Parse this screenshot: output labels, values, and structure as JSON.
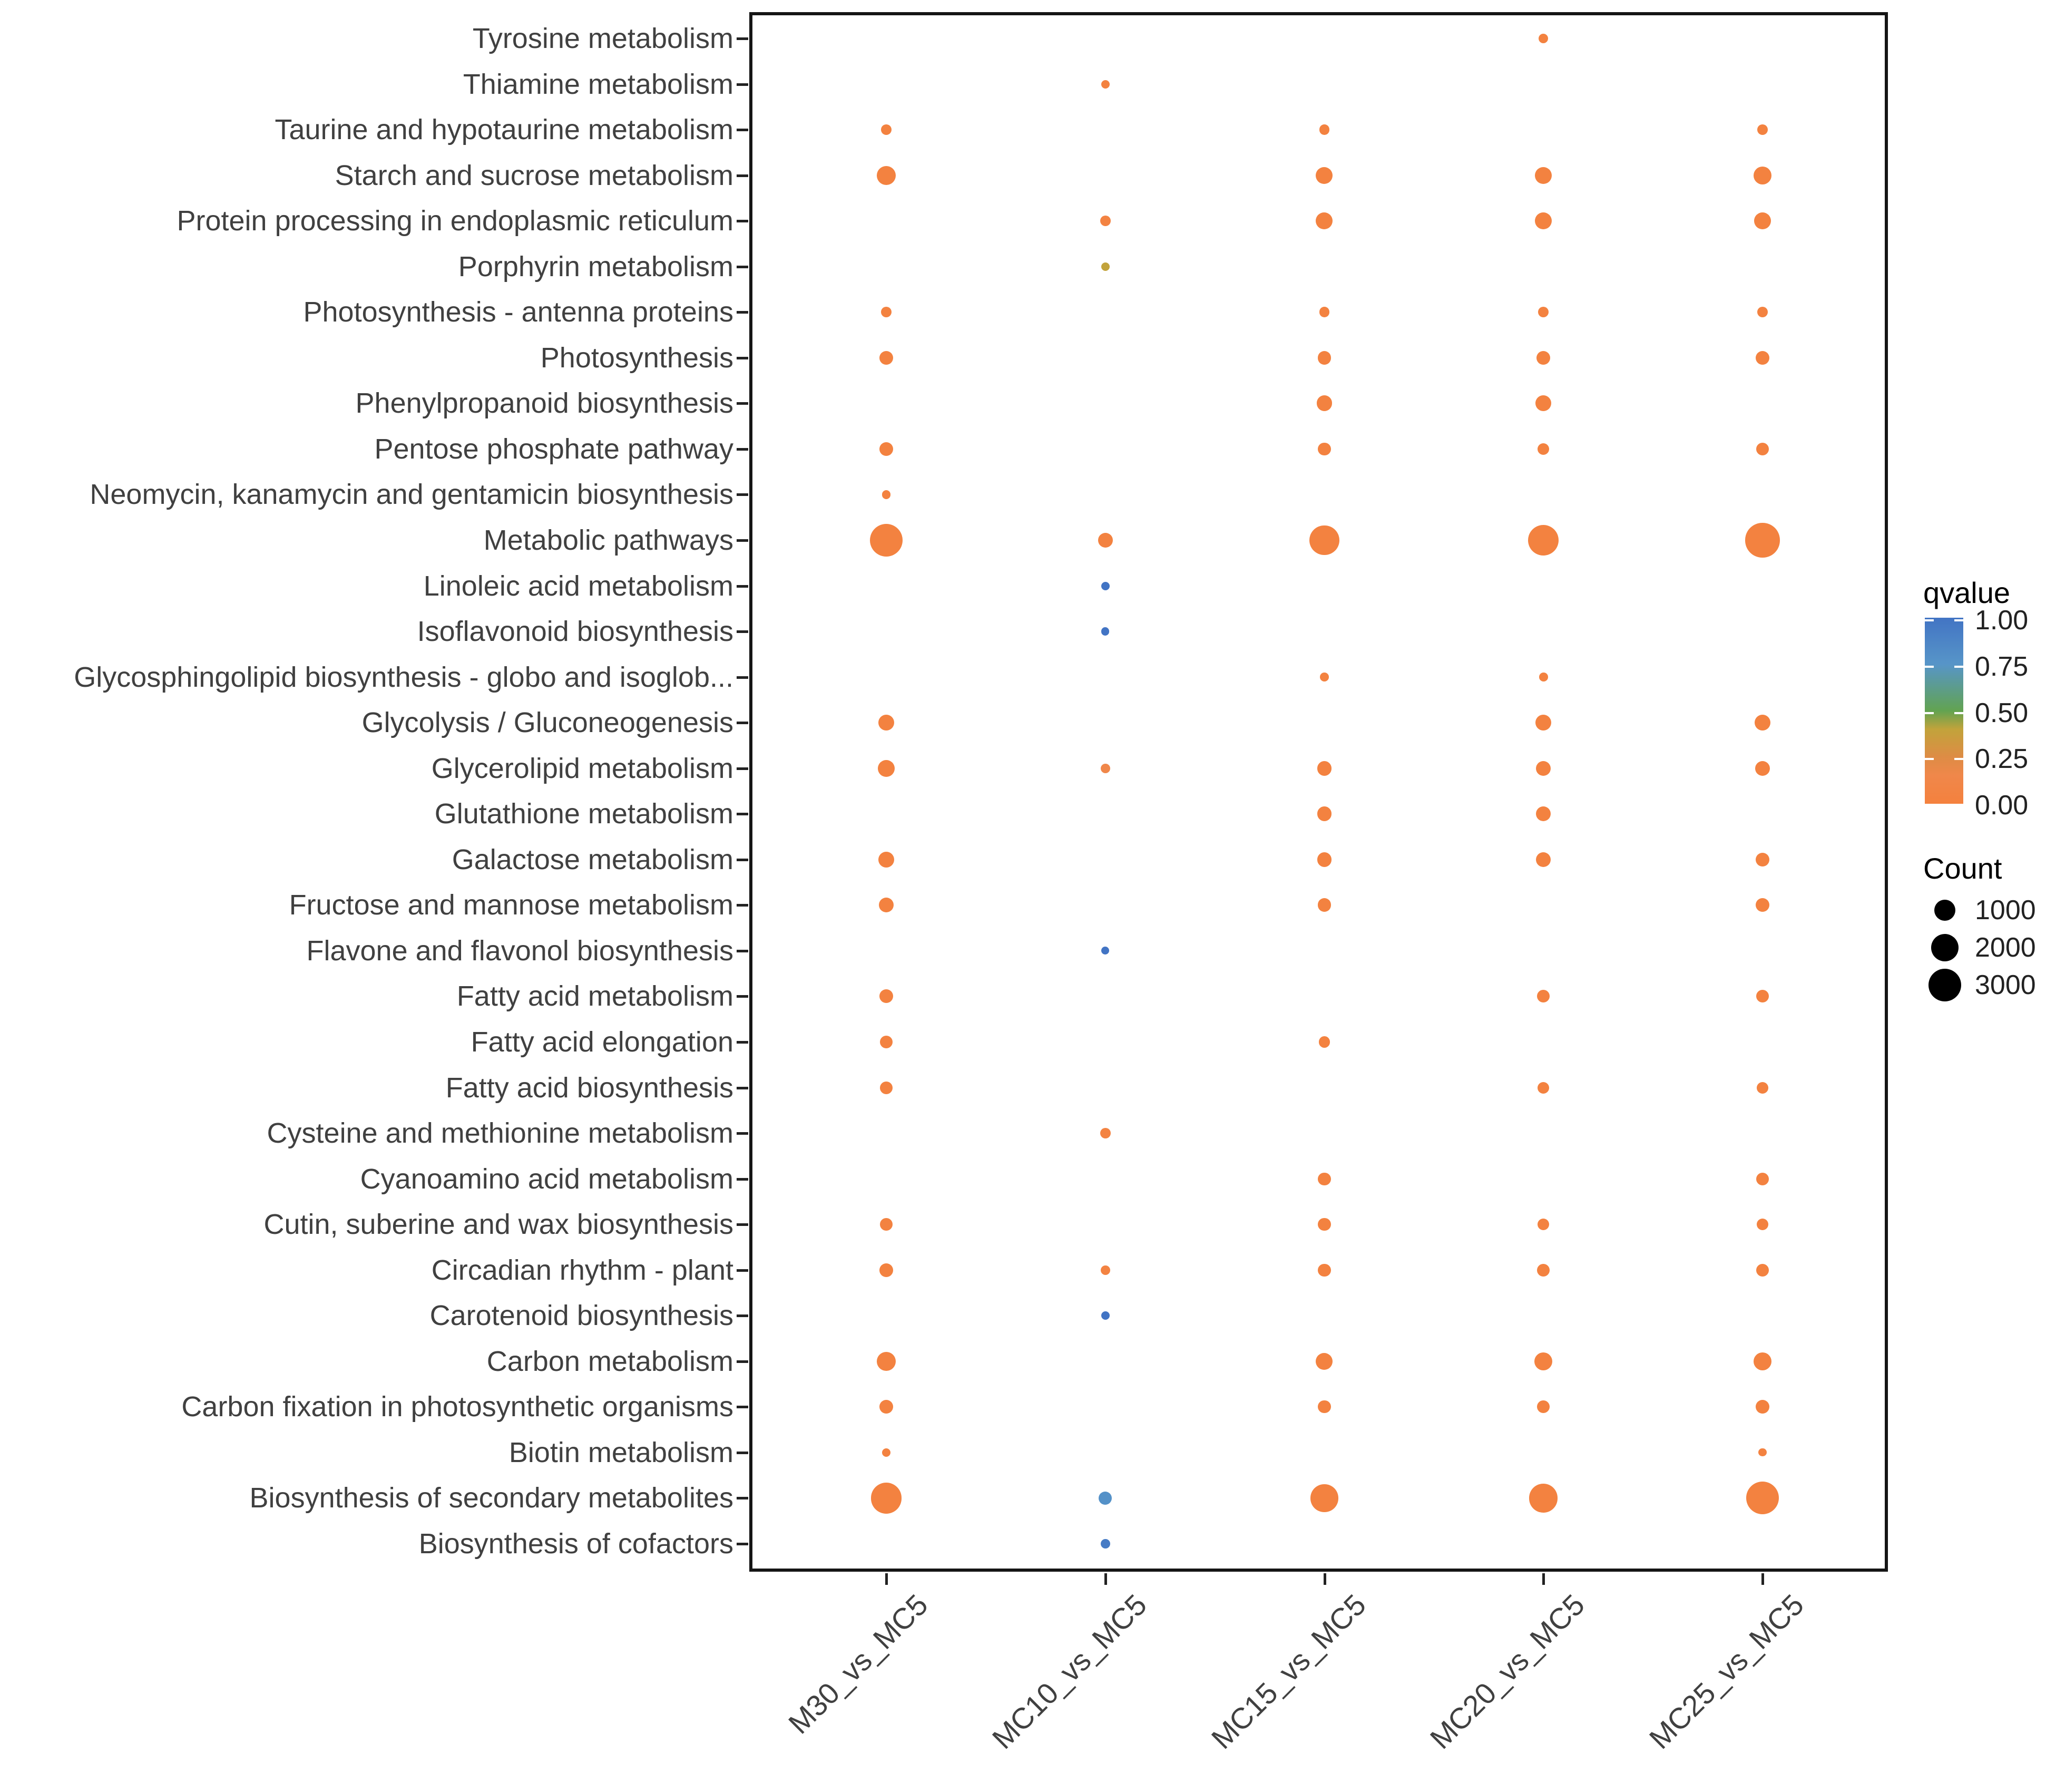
{
  "chart_data": {
    "type": "bubble",
    "title": "",
    "xlabel": "",
    "ylabel": "",
    "x_categories": [
      "M30_vs_MC5",
      "MC10_vs_MC5",
      "MC15_vs_MC5",
      "MC20_vs_MC5",
      "MC25_vs_MC5"
    ],
    "y_categories": [
      "Tyrosine metabolism",
      "Thiamine metabolism",
      "Taurine and hypotaurine metabolism",
      "Starch and sucrose metabolism",
      "Protein processing in endoplasmic reticulum",
      "Porphyrin metabolism",
      "Photosynthesis - antenna proteins",
      "Photosynthesis",
      "Phenylpropanoid biosynthesis",
      "Pentose phosphate pathway",
      "Neomycin, kanamycin and gentamicin biosynthesis",
      "Metabolic pathways",
      "Linoleic acid metabolism",
      "Isoflavonoid biosynthesis",
      "Glycosphingolipid biosynthesis - globo and isoglob...",
      "Glycolysis / Gluconeogenesis",
      "Glycerolipid metabolism",
      "Glutathione metabolism",
      "Galactose metabolism",
      "Fructose and mannose metabolism",
      "Flavone and flavonol biosynthesis",
      "Fatty acid metabolism",
      "Fatty acid elongation",
      "Fatty acid biosynthesis",
      "Cysteine and methionine metabolism",
      "Cyanoamino acid metabolism",
      "Cutin, suberine and wax biosynthesis",
      "Circadian rhythm - plant",
      "Carotenoid biosynthesis",
      "Carbon metabolism",
      "Carbon fixation in photosynthetic organisms",
      "Biotin metabolism",
      "Biosynthesis of secondary metabolites",
      "Biosynthesis of cofactors"
    ],
    "rows": [
      {
        "pathway": "Tyrosine metabolism",
        "dots": [
          {
            "comparison": "MC20_vs_MC5",
            "count": 70,
            "qvalue": 0.02
          }
        ]
      },
      {
        "pathway": "Thiamine metabolism",
        "dots": [
          {
            "comparison": "MC10_vs_MC5",
            "count": 40,
            "qvalue": 0.03
          }
        ]
      },
      {
        "pathway": "Taurine and hypotaurine metabolism",
        "dots": [
          {
            "comparison": "M30_vs_MC5",
            "count": 130,
            "qvalue": 0.02
          },
          {
            "comparison": "MC15_vs_MC5",
            "count": 110,
            "qvalue": 0.02
          },
          {
            "comparison": "MC25_vs_MC5",
            "count": 110,
            "qvalue": 0.02
          }
        ]
      },
      {
        "pathway": "Starch and sucrose metabolism",
        "dots": [
          {
            "comparison": "M30_vs_MC5",
            "count": 750,
            "qvalue": 0.02
          },
          {
            "comparison": "MC15_vs_MC5",
            "count": 540,
            "qvalue": 0.02
          },
          {
            "comparison": "MC20_vs_MC5",
            "count": 540,
            "qvalue": 0.02
          },
          {
            "comparison": "MC25_vs_MC5",
            "count": 640,
            "qvalue": 0.02
          }
        ]
      },
      {
        "pathway": "Protein processing in endoplasmic reticulum",
        "dots": [
          {
            "comparison": "MC10_vs_MC5",
            "count": 110,
            "qvalue": 0.05
          },
          {
            "comparison": "MC15_vs_MC5",
            "count": 540,
            "qvalue": 0.02
          },
          {
            "comparison": "MC20_vs_MC5",
            "count": 540,
            "qvalue": 0.02
          },
          {
            "comparison": "MC25_vs_MC5",
            "count": 540,
            "qvalue": 0.02
          }
        ]
      },
      {
        "pathway": "Porphyrin metabolism",
        "dots": [
          {
            "comparison": "MC10_vs_MC5",
            "count": 40,
            "qvalue": 0.4
          }
        ]
      },
      {
        "pathway": "Photosynthesis - antenna proteins",
        "dots": [
          {
            "comparison": "M30_vs_MC5",
            "count": 110,
            "qvalue": 0.02
          },
          {
            "comparison": "MC15_vs_MC5",
            "count": 110,
            "qvalue": 0.02
          },
          {
            "comparison": "MC20_vs_MC5",
            "count": 110,
            "qvalue": 0.02
          },
          {
            "comparison": "MC25_vs_MC5",
            "count": 110,
            "qvalue": 0.02
          }
        ]
      },
      {
        "pathway": "Photosynthesis",
        "dots": [
          {
            "comparison": "M30_vs_MC5",
            "count": 285,
            "qvalue": 0.02
          },
          {
            "comparison": "MC15_vs_MC5",
            "count": 285,
            "qvalue": 0.02
          },
          {
            "comparison": "MC20_vs_MC5",
            "count": 285,
            "qvalue": 0.02
          },
          {
            "comparison": "MC25_vs_MC5",
            "count": 285,
            "qvalue": 0.02
          }
        ]
      },
      {
        "pathway": "Phenylpropanoid biosynthesis",
        "dots": [
          {
            "comparison": "MC15_vs_MC5",
            "count": 445,
            "qvalue": 0.02
          },
          {
            "comparison": "MC20_vs_MC5",
            "count": 445,
            "qvalue": 0.02
          }
        ]
      },
      {
        "pathway": "Pentose phosphate pathway",
        "dots": [
          {
            "comparison": "M30_vs_MC5",
            "count": 285,
            "qvalue": 0.02
          },
          {
            "comparison": "MC15_vs_MC5",
            "count": 220,
            "qvalue": 0.02
          },
          {
            "comparison": "MC20_vs_MC5",
            "count": 160,
            "qvalue": 0.02
          },
          {
            "comparison": "MC25_vs_MC5",
            "count": 220,
            "qvalue": 0.02
          }
        ]
      },
      {
        "pathway": "Neomycin, kanamycin and gentamicin biosynthesis",
        "dots": [
          {
            "comparison": "M30_vs_MC5",
            "count": 50,
            "qvalue": 0.02
          }
        ]
      },
      {
        "pathway": "Metabolic pathways",
        "dots": [
          {
            "comparison": "M30_vs_MC5",
            "count": 3000,
            "qvalue": 0.02
          },
          {
            "comparison": "MC10_vs_MC5",
            "count": 360,
            "qvalue": 0.02
          },
          {
            "comparison": "MC15_vs_MC5",
            "count": 2400,
            "qvalue": 0.02
          },
          {
            "comparison": "MC20_vs_MC5",
            "count": 2600,
            "qvalue": 0.02
          },
          {
            "comparison": "MC25_vs_MC5",
            "count": 3400,
            "qvalue": 0.02
          }
        ]
      },
      {
        "pathway": "Linoleic acid metabolism",
        "dots": [
          {
            "comparison": "MC10_vs_MC5",
            "count": 40,
            "qvalue": 1.0
          }
        ]
      },
      {
        "pathway": "Isoflavonoid biosynthesis",
        "dots": [
          {
            "comparison": "MC10_vs_MC5",
            "count": 30,
            "qvalue": 1.0
          }
        ]
      },
      {
        "pathway": "Glycosphingolipid biosynthesis - globo and isoglob...",
        "dots": [
          {
            "comparison": "MC15_vs_MC5",
            "count": 50,
            "qvalue": 0.02
          },
          {
            "comparison": "MC20_vs_MC5",
            "count": 50,
            "qvalue": 0.02
          }
        ]
      },
      {
        "pathway": "Glycolysis / Gluconeogenesis",
        "dots": [
          {
            "comparison": "M30_vs_MC5",
            "count": 445,
            "qvalue": 0.02
          },
          {
            "comparison": "MC20_vs_MC5",
            "count": 445,
            "qvalue": 0.02
          },
          {
            "comparison": "MC25_vs_MC5",
            "count": 445,
            "qvalue": 0.02
          }
        ]
      },
      {
        "pathway": "Glycerolipid metabolism",
        "dots": [
          {
            "comparison": "M30_vs_MC5",
            "count": 540,
            "qvalue": 0.02
          },
          {
            "comparison": "MC10_vs_MC5",
            "count": 70,
            "qvalue": 0.15
          },
          {
            "comparison": "MC15_vs_MC5",
            "count": 360,
            "qvalue": 0.02
          },
          {
            "comparison": "MC20_vs_MC5",
            "count": 360,
            "qvalue": 0.02
          },
          {
            "comparison": "MC25_vs_MC5",
            "count": 360,
            "qvalue": 0.02
          }
        ]
      },
      {
        "pathway": "Glutathione metabolism",
        "dots": [
          {
            "comparison": "MC15_vs_MC5",
            "count": 360,
            "qvalue": 0.02
          },
          {
            "comparison": "MC20_vs_MC5",
            "count": 360,
            "qvalue": 0.02
          }
        ]
      },
      {
        "pathway": "Galactose metabolism",
        "dots": [
          {
            "comparison": "M30_vs_MC5",
            "count": 445,
            "qvalue": 0.02
          },
          {
            "comparison": "MC15_vs_MC5",
            "count": 360,
            "qvalue": 0.02
          },
          {
            "comparison": "MC20_vs_MC5",
            "count": 360,
            "qvalue": 0.02
          },
          {
            "comparison": "MC25_vs_MC5",
            "count": 285,
            "qvalue": 0.02
          }
        ]
      },
      {
        "pathway": "Fructose and mannose metabolism",
        "dots": [
          {
            "comparison": "M30_vs_MC5",
            "count": 360,
            "qvalue": 0.02
          },
          {
            "comparison": "MC15_vs_MC5",
            "count": 285,
            "qvalue": 0.02
          },
          {
            "comparison": "MC25_vs_MC5",
            "count": 285,
            "qvalue": 0.02
          }
        ]
      },
      {
        "pathway": "Flavone and flavonol biosynthesis",
        "dots": [
          {
            "comparison": "MC10_vs_MC5",
            "count": 30,
            "qvalue": 1.0
          }
        ]
      },
      {
        "pathway": "Fatty acid metabolism",
        "dots": [
          {
            "comparison": "M30_vs_MC5",
            "count": 285,
            "qvalue": 0.02
          },
          {
            "comparison": "MC20_vs_MC5",
            "count": 220,
            "qvalue": 0.02
          },
          {
            "comparison": "MC25_vs_MC5",
            "count": 220,
            "qvalue": 0.02
          }
        ]
      },
      {
        "pathway": "Fatty acid elongation",
        "dots": [
          {
            "comparison": "M30_vs_MC5",
            "count": 220,
            "qvalue": 0.02
          },
          {
            "comparison": "MC15_vs_MC5",
            "count": 160,
            "qvalue": 0.02
          }
        ]
      },
      {
        "pathway": "Fatty acid biosynthesis",
        "dots": [
          {
            "comparison": "M30_vs_MC5",
            "count": 220,
            "qvalue": 0.02
          },
          {
            "comparison": "MC20_vs_MC5",
            "count": 160,
            "qvalue": 0.02
          },
          {
            "comparison": "MC25_vs_MC5",
            "count": 160,
            "qvalue": 0.02
          }
        ]
      },
      {
        "pathway": "Cysteine and methionine metabolism",
        "dots": [
          {
            "comparison": "MC10_vs_MC5",
            "count": 110,
            "qvalue": 0.05
          }
        ]
      },
      {
        "pathway": "Cyanoamino acid metabolism",
        "dots": [
          {
            "comparison": "MC15_vs_MC5",
            "count": 220,
            "qvalue": 0.02
          },
          {
            "comparison": "MC25_vs_MC5",
            "count": 220,
            "qvalue": 0.02
          }
        ]
      },
      {
        "pathway": "Cutin, suberine and wax biosynthesis",
        "dots": [
          {
            "comparison": "M30_vs_MC5",
            "count": 220,
            "qvalue": 0.02
          },
          {
            "comparison": "MC15_vs_MC5",
            "count": 220,
            "qvalue": 0.02
          },
          {
            "comparison": "MC20_vs_MC5",
            "count": 160,
            "qvalue": 0.02
          },
          {
            "comparison": "MC25_vs_MC5",
            "count": 160,
            "qvalue": 0.02
          }
        ]
      },
      {
        "pathway": "Circadian rhythm - plant",
        "dots": [
          {
            "comparison": "M30_vs_MC5",
            "count": 285,
            "qvalue": 0.02
          },
          {
            "comparison": "MC10_vs_MC5",
            "count": 70,
            "qvalue": 0.05
          },
          {
            "comparison": "MC15_vs_MC5",
            "count": 220,
            "qvalue": 0.02
          },
          {
            "comparison": "MC20_vs_MC5",
            "count": 220,
            "qvalue": 0.02
          },
          {
            "comparison": "MC25_vs_MC5",
            "count": 220,
            "qvalue": 0.02
          }
        ]
      },
      {
        "pathway": "Carotenoid biosynthesis",
        "dots": [
          {
            "comparison": "MC10_vs_MC5",
            "count": 40,
            "qvalue": 1.0
          }
        ]
      },
      {
        "pathway": "Carbon metabolism",
        "dots": [
          {
            "comparison": "M30_vs_MC5",
            "count": 750,
            "qvalue": 0.02
          },
          {
            "comparison": "MC15_vs_MC5",
            "count": 540,
            "qvalue": 0.02
          },
          {
            "comparison": "MC20_vs_MC5",
            "count": 640,
            "qvalue": 0.02
          },
          {
            "comparison": "MC25_vs_MC5",
            "count": 640,
            "qvalue": 0.02
          }
        ]
      },
      {
        "pathway": "Carbon fixation in photosynthetic organisms",
        "dots": [
          {
            "comparison": "M30_vs_MC5",
            "count": 285,
            "qvalue": 0.02
          },
          {
            "comparison": "MC15_vs_MC5",
            "count": 220,
            "qvalue": 0.02
          },
          {
            "comparison": "MC20_vs_MC5",
            "count": 220,
            "qvalue": 0.02
          },
          {
            "comparison": "MC25_vs_MC5",
            "count": 285,
            "qvalue": 0.02
          }
        ]
      },
      {
        "pathway": "Biotin metabolism",
        "dots": [
          {
            "comparison": "M30_vs_MC5",
            "count": 50,
            "qvalue": 0.02
          },
          {
            "comparison": "MC25_vs_MC5",
            "count": 30,
            "qvalue": 0.02
          }
        ]
      },
      {
        "pathway": "Biosynthesis of secondary metabolites",
        "dots": [
          {
            "comparison": "M30_vs_MC5",
            "count": 2600,
            "qvalue": 0.02
          },
          {
            "comparison": "MC10_vs_MC5",
            "count": 250,
            "qvalue": 0.78
          },
          {
            "comparison": "MC15_vs_MC5",
            "count": 2000,
            "qvalue": 0.02
          },
          {
            "comparison": "MC20_vs_MC5",
            "count": 2200,
            "qvalue": 0.02
          },
          {
            "comparison": "MC25_vs_MC5",
            "count": 3000,
            "qvalue": 0.02
          }
        ]
      },
      {
        "pathway": "Biosynthesis of cofactors",
        "dots": [
          {
            "comparison": "MC10_vs_MC5",
            "count": 70,
            "qvalue": 0.95
          }
        ]
      }
    ],
    "legend": {
      "qvalue_title": "qvalue",
      "qvalue_ticks": [
        "1.00",
        "0.75",
        "0.50",
        "0.25",
        "0.00"
      ],
      "count_title": "Count",
      "count_ticks": [
        "1000",
        "2000",
        "3000"
      ]
    },
    "qvalue_gradient": [
      [
        0.0,
        "#F4813E"
      ],
      [
        0.15,
        "#F0874A"
      ],
      [
        0.25,
        "#DE8C45"
      ],
      [
        0.4,
        "#C2A33B"
      ],
      [
        0.5,
        "#62A351"
      ],
      [
        0.75,
        "#5795C8"
      ],
      [
        1.0,
        "#4274C4"
      ]
    ],
    "layout_hints": {
      "grid": "off",
      "legend_position": "right",
      "x_tick_angle": 45
    },
    "colors": {
      "axis_text": "#404040",
      "tick": "#222222",
      "panel_border": "#151515",
      "legend_dot": "#000000",
      "background": "#ffffff"
    }
  }
}
